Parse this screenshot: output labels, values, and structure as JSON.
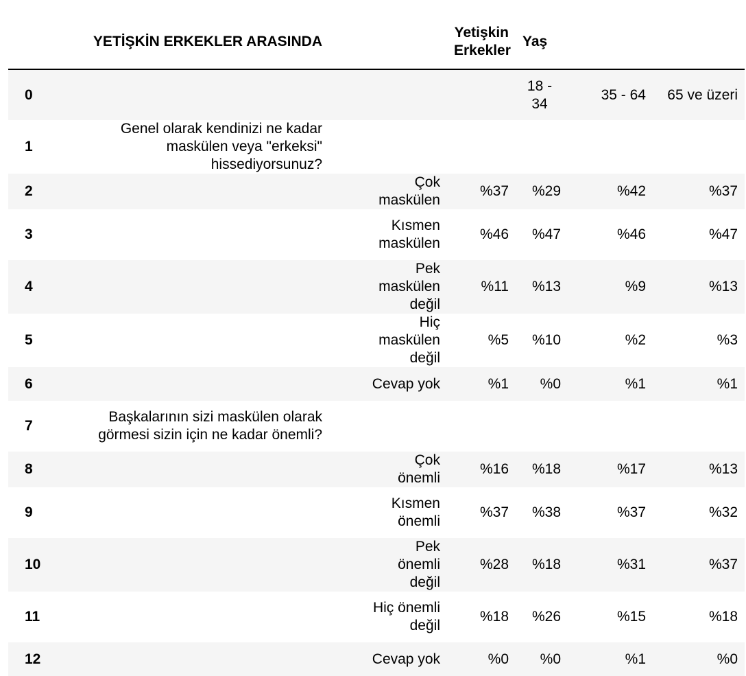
{
  "header": {
    "title": "YETİŞKİN ERKEKLER ARASINDA",
    "col_adult_men": "Yetişkin Erkekler",
    "col_age": "Yaş"
  },
  "rows": [
    {
      "idx": "0",
      "q": "",
      "a": "",
      "c1": "",
      "c2": "18 - 34",
      "c3": "35 - 64",
      "c4": "65 ve üzeri"
    },
    {
      "idx": "1",
      "q": "Genel olarak kendinizi ne kadar maskülen veya \"erkeksi\" hissediyorsunuz?",
      "a": "",
      "c1": "",
      "c2": "",
      "c3": "",
      "c4": ""
    },
    {
      "idx": "2",
      "q": "",
      "a": "Çok maskülen",
      "c1": "%37",
      "c2": "%29",
      "c3": "%42",
      "c4": "%37"
    },
    {
      "idx": "3",
      "q": "",
      "a": "Kısmen maskülen",
      "c1": "%46",
      "c2": "%47",
      "c3": "%46",
      "c4": "%47"
    },
    {
      "idx": "4",
      "q": "",
      "a": "Pek maskülen değil",
      "c1": "%11",
      "c2": "%13",
      "c3": "%9",
      "c4": "%13"
    },
    {
      "idx": "5",
      "q": "",
      "a": "Hiç maskülen değil",
      "c1": "%5",
      "c2": "%10",
      "c3": "%2",
      "c4": "%3"
    },
    {
      "idx": "6",
      "q": "",
      "a": "Cevap yok",
      "c1": "%1",
      "c2": "%0",
      "c3": "%1",
      "c4": "%1"
    },
    {
      "idx": "7",
      "q": "Başkalarının sizi maskülen olarak görmesi sizin için ne kadar önemli?",
      "a": "",
      "c1": "",
      "c2": "",
      "c3": "",
      "c4": ""
    },
    {
      "idx": "8",
      "q": "",
      "a": "Çok önemli",
      "c1": "%16",
      "c2": "%18",
      "c3": "%17",
      "c4": "%13"
    },
    {
      "idx": "9",
      "q": "",
      "a": "Kısmen önemli",
      "c1": "%37",
      "c2": "%38",
      "c3": "%37",
      "c4": "%32"
    },
    {
      "idx": "10",
      "q": "",
      "a": "Pek önemli değil",
      "c1": "%28",
      "c2": "%18",
      "c3": "%31",
      "c4": "%37"
    },
    {
      "idx": "11",
      "q": "",
      "a": "Hiç önemli değil",
      "c1": "%18",
      "c2": "%26",
      "c3": "%15",
      "c4": "%18"
    },
    {
      "idx": "12",
      "q": "",
      "a": "Cevap yok",
      "c1": "%0",
      "c2": "%0",
      "c3": "%1",
      "c4": "%0"
    }
  ]
}
